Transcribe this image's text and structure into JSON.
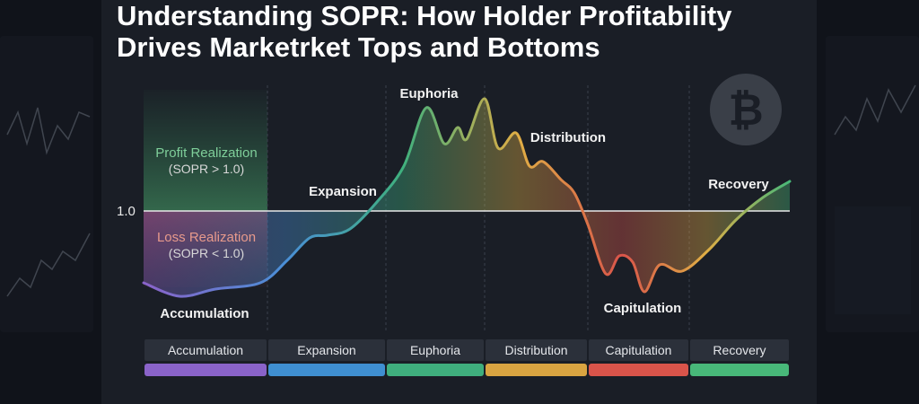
{
  "header": {
    "title_lines": [
      "Understanding SOPR: How Holder Profitability",
      "Drives Marketrket Tops and Bottoms"
    ]
  },
  "diagram": {
    "reference_level": "1.0",
    "profit_zone": {
      "label": "Profit Realization",
      "note": "(SOPR > 1.0)"
    },
    "loss_zone": {
      "label": "Loss Realization",
      "note": "(SOPR < 1.0)"
    },
    "annotations": [
      "Accumulation",
      "Expansion",
      "Euphoria",
      "Distribution",
      "Capitulation",
      "Recovery"
    ],
    "icon_symbol": "₿"
  },
  "phase_bar": {
    "phases": [
      {
        "label": "Accumulation",
        "color": "#8a63c9"
      },
      {
        "label": "Expansion",
        "color": "#3f8fd1"
      },
      {
        "label": "Euphoria",
        "color": "#3fae7d"
      },
      {
        "label": "Distribution",
        "color": "#d9a441"
      },
      {
        "label": "Capitulation",
        "color": "#d9544a"
      },
      {
        "label": "Recovery",
        "color": "#48b879"
      }
    ]
  }
}
